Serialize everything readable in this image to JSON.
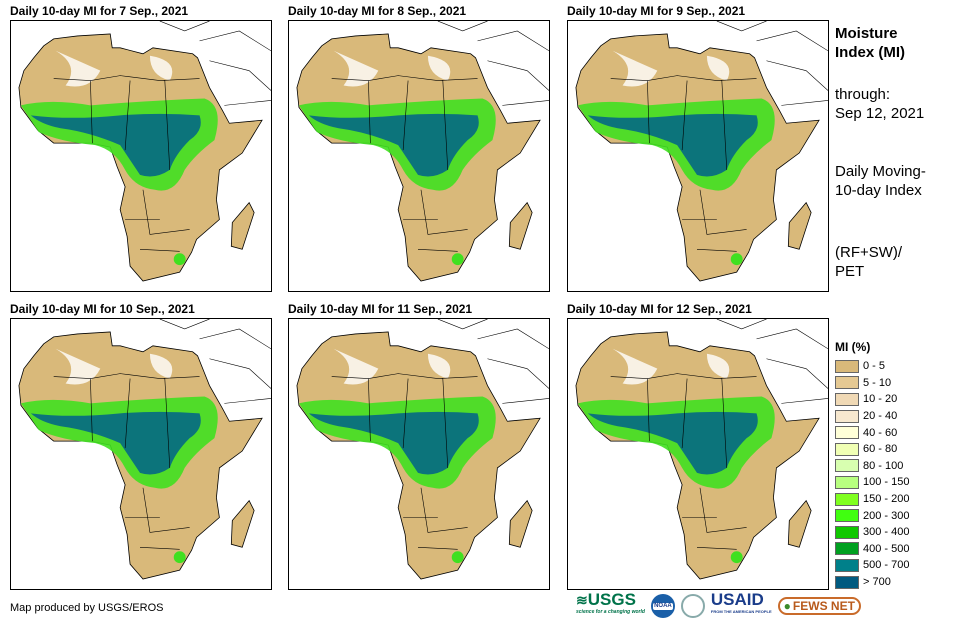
{
  "panels": [
    {
      "title": "Daily 10-day MI for 7 Sep., 2021"
    },
    {
      "title": "Daily 10-day MI for 8 Sep., 2021"
    },
    {
      "title": "Daily 10-day MI for 9 Sep., 2021"
    },
    {
      "title": "Daily 10-day MI for 10 Sep., 2021"
    },
    {
      "title": "Daily 10-day MI for 11 Sep., 2021"
    },
    {
      "title": "Daily 10-day MI for 12 Sep., 2021"
    }
  ],
  "side": {
    "heading": "Moisture Index (MI)",
    "through_label": "through:",
    "through_date": "Sep 12, 2021",
    "description": "Daily Moving-10-day Index",
    "formula": "(RF+SW)/ PET"
  },
  "legend": {
    "title": "MI (%)",
    "items": [
      {
        "label": "0 - 5",
        "color": "#d9b97a"
      },
      {
        "label": "5 - 10",
        "color": "#e5c993"
      },
      {
        "label": "10 - 20",
        "color": "#f0d9b5"
      },
      {
        "label": "20 - 40",
        "color": "#f7e8cf"
      },
      {
        "label": "40 - 60",
        "color": "#ffffd8"
      },
      {
        "label": "60 - 80",
        "color": "#f0ffb4"
      },
      {
        "label": "80 - 100",
        "color": "#d8ffb0"
      },
      {
        "label": "100 - 150",
        "color": "#b8ff80"
      },
      {
        "label": "150 - 200",
        "color": "#80ff20"
      },
      {
        "label": "200 - 300",
        "color": "#40ff10"
      },
      {
        "label": "300 - 400",
        "color": "#10c800"
      },
      {
        "label": "400 - 500",
        "color": "#00a020"
      },
      {
        "label": "500 - 700",
        "color": "#00808a"
      },
      {
        "label": "> 700",
        "color": "#005a80"
      }
    ]
  },
  "footer": "Map produced by USGS/EROS",
  "logos": {
    "usgs": "USGS",
    "usgs_tag": "science for a changing world",
    "noaa": "NOAA",
    "usaid": "USAID",
    "usaid_tag": "FROM THE AMERICAN PEOPLE",
    "fews": "FEWS NET"
  }
}
